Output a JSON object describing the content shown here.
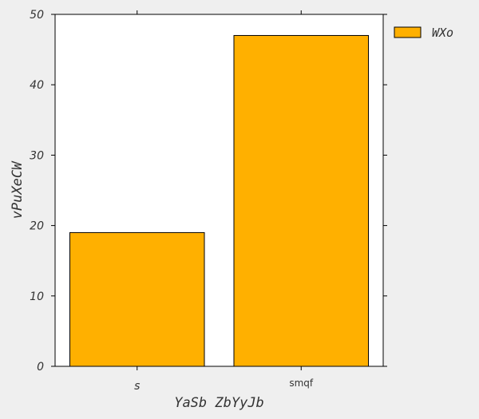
{
  "chart_data": {
    "type": "bar",
    "categories": [
      "s",
      "smqf"
    ],
    "series": [
      {
        "name": "WXo",
        "values": [
          19,
          47
        ],
        "color": "#ffb000"
      }
    ],
    "xlabel": "YaSb ZbYyJb",
    "ylabel": "vPuXeCW",
    "ylim": [
      0,
      50
    ],
    "yticks": [
      0,
      10,
      20,
      30,
      40,
      50
    ],
    "grid": false,
    "legend": "outside-top-right"
  }
}
